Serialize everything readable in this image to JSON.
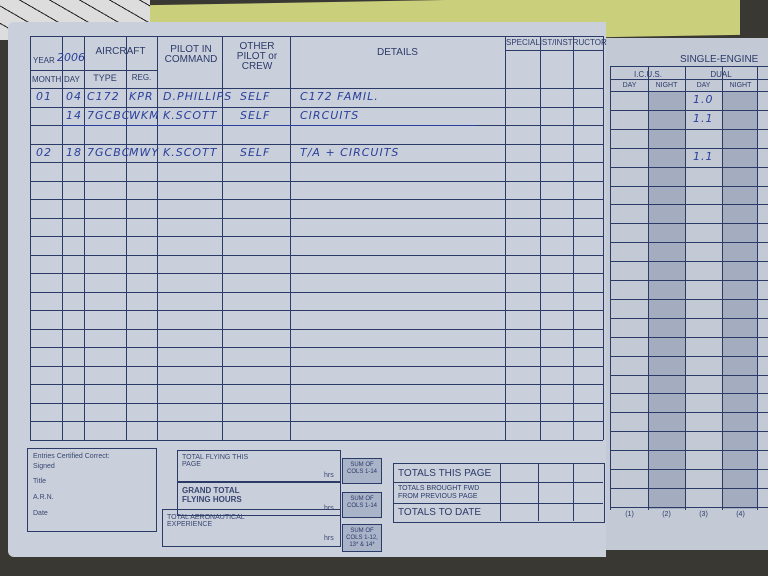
{
  "header": {
    "year_label": "YEAR",
    "year_value": "2006",
    "aircraft": "AIRCRAFT",
    "pilot_in_command": "PILOT IN COMMAND",
    "other_pilot": "OTHER PILOT or CREW",
    "details": "DETAILS",
    "month": "MONTH",
    "day": "DAY",
    "type": "TYPE",
    "reg": "REG.",
    "specialist": "SPECIALIST/INSTRUCTOR"
  },
  "right_header": {
    "single_engine": "SINGLE-ENGINE",
    "icus": "I.C.U.S.",
    "dual": "DUAL",
    "day": "DAY",
    "night": "NIGHT",
    "col_numbers": [
      "(1)",
      "(2)",
      "(3)",
      "(4)"
    ]
  },
  "entries": [
    {
      "month": "01",
      "day": "04",
      "type": "C172",
      "reg": "KPR",
      "pic": "D.PHILLIPS",
      "other": "SELF",
      "details": "C172 FAMIL.",
      "dual_day": "1.0"
    },
    {
      "month": "",
      "day": "14",
      "type": "7GCBC",
      "reg": "WKM",
      "pic": "K.SCOTT",
      "other": "SELF",
      "details": "CIRCUITS",
      "dual_day": "1.1"
    },
    {
      "month": "",
      "day": "",
      "type": "",
      "reg": "",
      "pic": "",
      "other": "",
      "details": "",
      "dual_day": ""
    },
    {
      "month": "02",
      "day": "18",
      "type": "7GCBC",
      "reg": "MWY",
      "pic": "K.SCOTT",
      "other": "SELF",
      "details": "T/A + CIRCUITS",
      "dual_day": "1.1"
    }
  ],
  "footer": {
    "certified": "Entries Certified Correct:",
    "signed": "Signed",
    "title": "Title",
    "arn": "A.R.N.",
    "date": "Date",
    "total_flying_page": "TOTAL FLYING THIS PAGE",
    "grand_total": "GRAND TOTAL FLYING HOURS",
    "total_aero": "TOTAL AERONAUTICAL EXPERIENCE",
    "hrs": "hrs",
    "sum1": "SUM OF COLS 1-14",
    "sum2": "SUM OF COLS 1-14",
    "sum3": "SUM OF COLS 1-12, 13* & 14*",
    "totals_this_page": "TOTALS THIS PAGE",
    "totals_brought": "TOTALS BROUGHT FWD FROM PREVIOUS PAGE",
    "totals_to_date": "TOTALS TO DATE"
  }
}
